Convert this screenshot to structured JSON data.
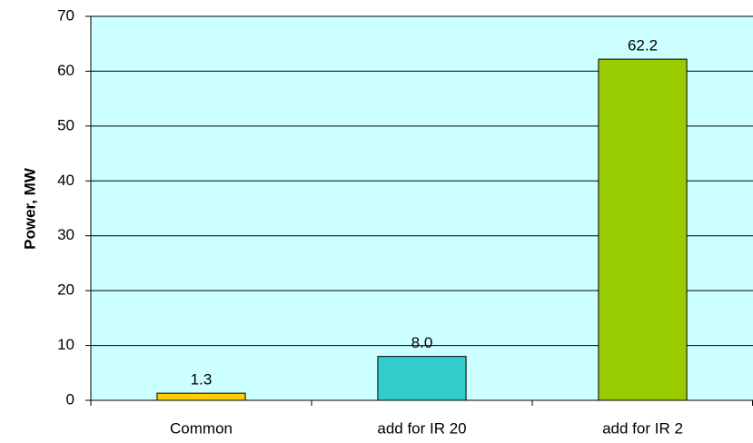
{
  "chart_data": {
    "type": "bar",
    "y_label": "Power, MW",
    "categories": [
      "Common",
      "add for IR 20",
      "add for IR 2"
    ],
    "values": [
      1.3,
      8.0,
      62.2
    ],
    "value_labels": [
      "1.3",
      "8.0",
      "62.2"
    ],
    "colors": [
      "#ffcc00",
      "#33cccc",
      "#99cc00"
    ],
    "plot_background": "#ccffff",
    "ylim": [
      0,
      70
    ],
    "yticks": [
      0,
      10,
      20,
      30,
      40,
      50,
      60,
      70
    ],
    "grid": true
  }
}
